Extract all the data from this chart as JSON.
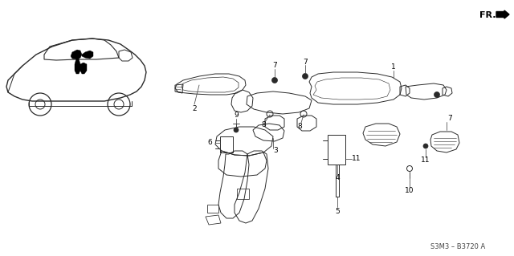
{
  "bg_color": "#ffffff",
  "line_color": "#2a2a2a",
  "part_number": "S3M3 – B3720 A",
  "fr_label": "FR.",
  "figsize": [
    6.4,
    3.19
  ],
  "dpi": 100,
  "lw": 0.7,
  "car_color": "#2a2a2a",
  "duct_color": "#2a2a2a"
}
